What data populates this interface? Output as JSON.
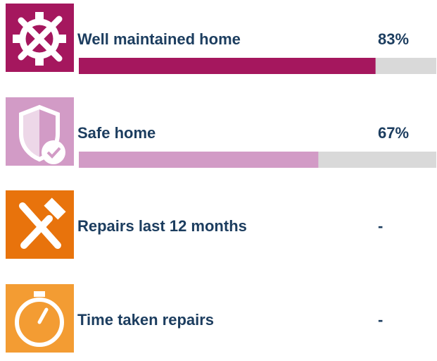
{
  "items": [
    {
      "label": "Well maintained home",
      "value": 83,
      "value_label": "83%",
      "color": "#a5175e"
    },
    {
      "label": "Safe home",
      "value": 67,
      "value_label": "67%",
      "color": "#d29bc6"
    },
    {
      "label": "Repairs last 12 months",
      "value": null,
      "value_label": "-",
      "color": "#e8730c"
    },
    {
      "label": "Time taken repairs",
      "value": null,
      "value_label": "-",
      "color": "#f39c33"
    }
  ]
}
